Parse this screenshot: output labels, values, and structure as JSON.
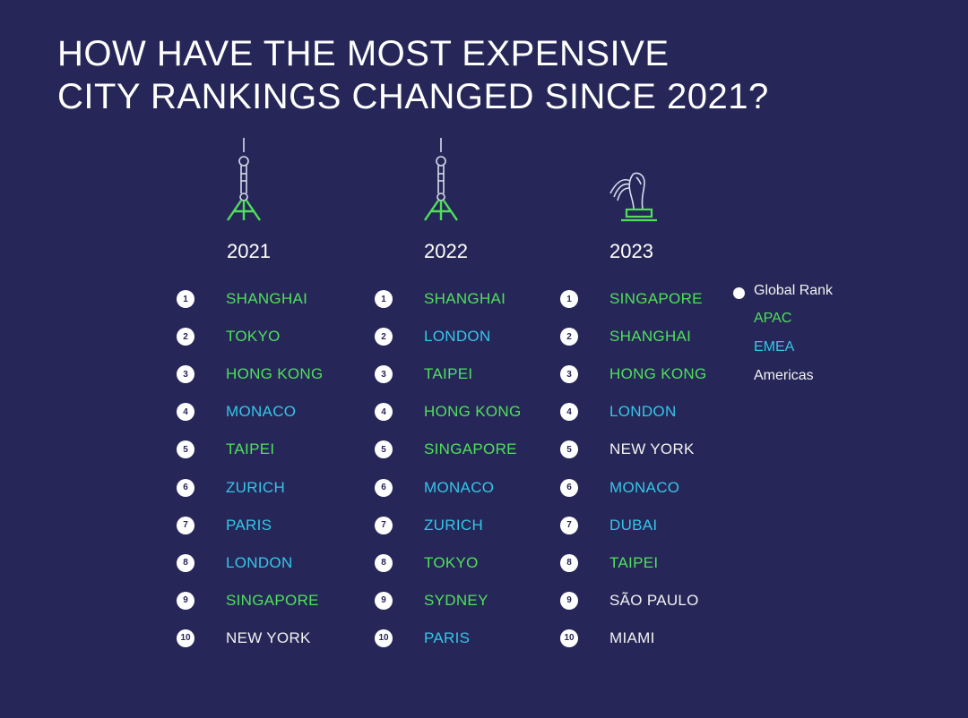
{
  "title": {
    "line1": "HOW HAVE THE MOST EXPENSIVE",
    "line2": "CITY RANKINGS CHANGED SINCE 2021?"
  },
  "colors": {
    "background": "#262758",
    "apac": "#4fe05a",
    "emea": "#35c6e8",
    "americas": "#f2f2f2"
  },
  "columns": [
    {
      "year": "2021",
      "icon": "oriental-pearl-tower-icon",
      "rankings": [
        {
          "rank": "1",
          "city": "SHANGHAI",
          "region": "apac"
        },
        {
          "rank": "2",
          "city": "TOKYO",
          "region": "apac"
        },
        {
          "rank": "3",
          "city": "HONG KONG",
          "region": "apac"
        },
        {
          "rank": "4",
          "city": "MONACO",
          "region": "emea"
        },
        {
          "rank": "5",
          "city": "TAIPEI",
          "region": "apac"
        },
        {
          "rank": "6",
          "city": "ZURICH",
          "region": "emea"
        },
        {
          "rank": "7",
          "city": "PARIS",
          "region": "emea"
        },
        {
          "rank": "8",
          "city": "LONDON",
          "region": "emea"
        },
        {
          "rank": "9",
          "city": "SINGAPORE",
          "region": "apac"
        },
        {
          "rank": "10",
          "city": "NEW YORK",
          "region": "americas"
        }
      ]
    },
    {
      "year": "2022",
      "icon": "oriental-pearl-tower-icon",
      "rankings": [
        {
          "rank": "1",
          "city": "SHANGHAI",
          "region": "apac"
        },
        {
          "rank": "2",
          "city": "LONDON",
          "region": "emea"
        },
        {
          "rank": "3",
          "city": "TAIPEI",
          "region": "apac"
        },
        {
          "rank": "4",
          "city": "HONG KONG",
          "region": "apac"
        },
        {
          "rank": "5",
          "city": "SINGAPORE",
          "region": "apac"
        },
        {
          "rank": "6",
          "city": "MONACO",
          "region": "emea"
        },
        {
          "rank": "7",
          "city": "ZURICH",
          "region": "emea"
        },
        {
          "rank": "8",
          "city": "TOKYO",
          "region": "apac"
        },
        {
          "rank": "9",
          "city": "SYDNEY",
          "region": "apac"
        },
        {
          "rank": "10",
          "city": "PARIS",
          "region": "emea"
        }
      ]
    },
    {
      "year": "2023",
      "icon": "merlion-icon",
      "rankings": [
        {
          "rank": "1",
          "city": "SINGAPORE",
          "region": "apac"
        },
        {
          "rank": "2",
          "city": "SHANGHAI",
          "region": "apac"
        },
        {
          "rank": "3",
          "city": "HONG KONG",
          "region": "apac"
        },
        {
          "rank": "4",
          "city": "LONDON",
          "region": "emea"
        },
        {
          "rank": "5",
          "city": "NEW YORK",
          "region": "americas"
        },
        {
          "rank": "6",
          "city": "MONACO",
          "region": "emea"
        },
        {
          "rank": "7",
          "city": "DUBAI",
          "region": "emea"
        },
        {
          "rank": "8",
          "city": "TAIPEI",
          "region": "apac"
        },
        {
          "rank": "9",
          "city": "SÃO PAULO",
          "region": "americas"
        },
        {
          "rank": "10",
          "city": "MIAMI",
          "region": "americas"
        }
      ]
    }
  ],
  "legend": {
    "global_rank": "Global Rank",
    "apac": "APAC",
    "emea": "EMEA",
    "americas": "Americas"
  }
}
